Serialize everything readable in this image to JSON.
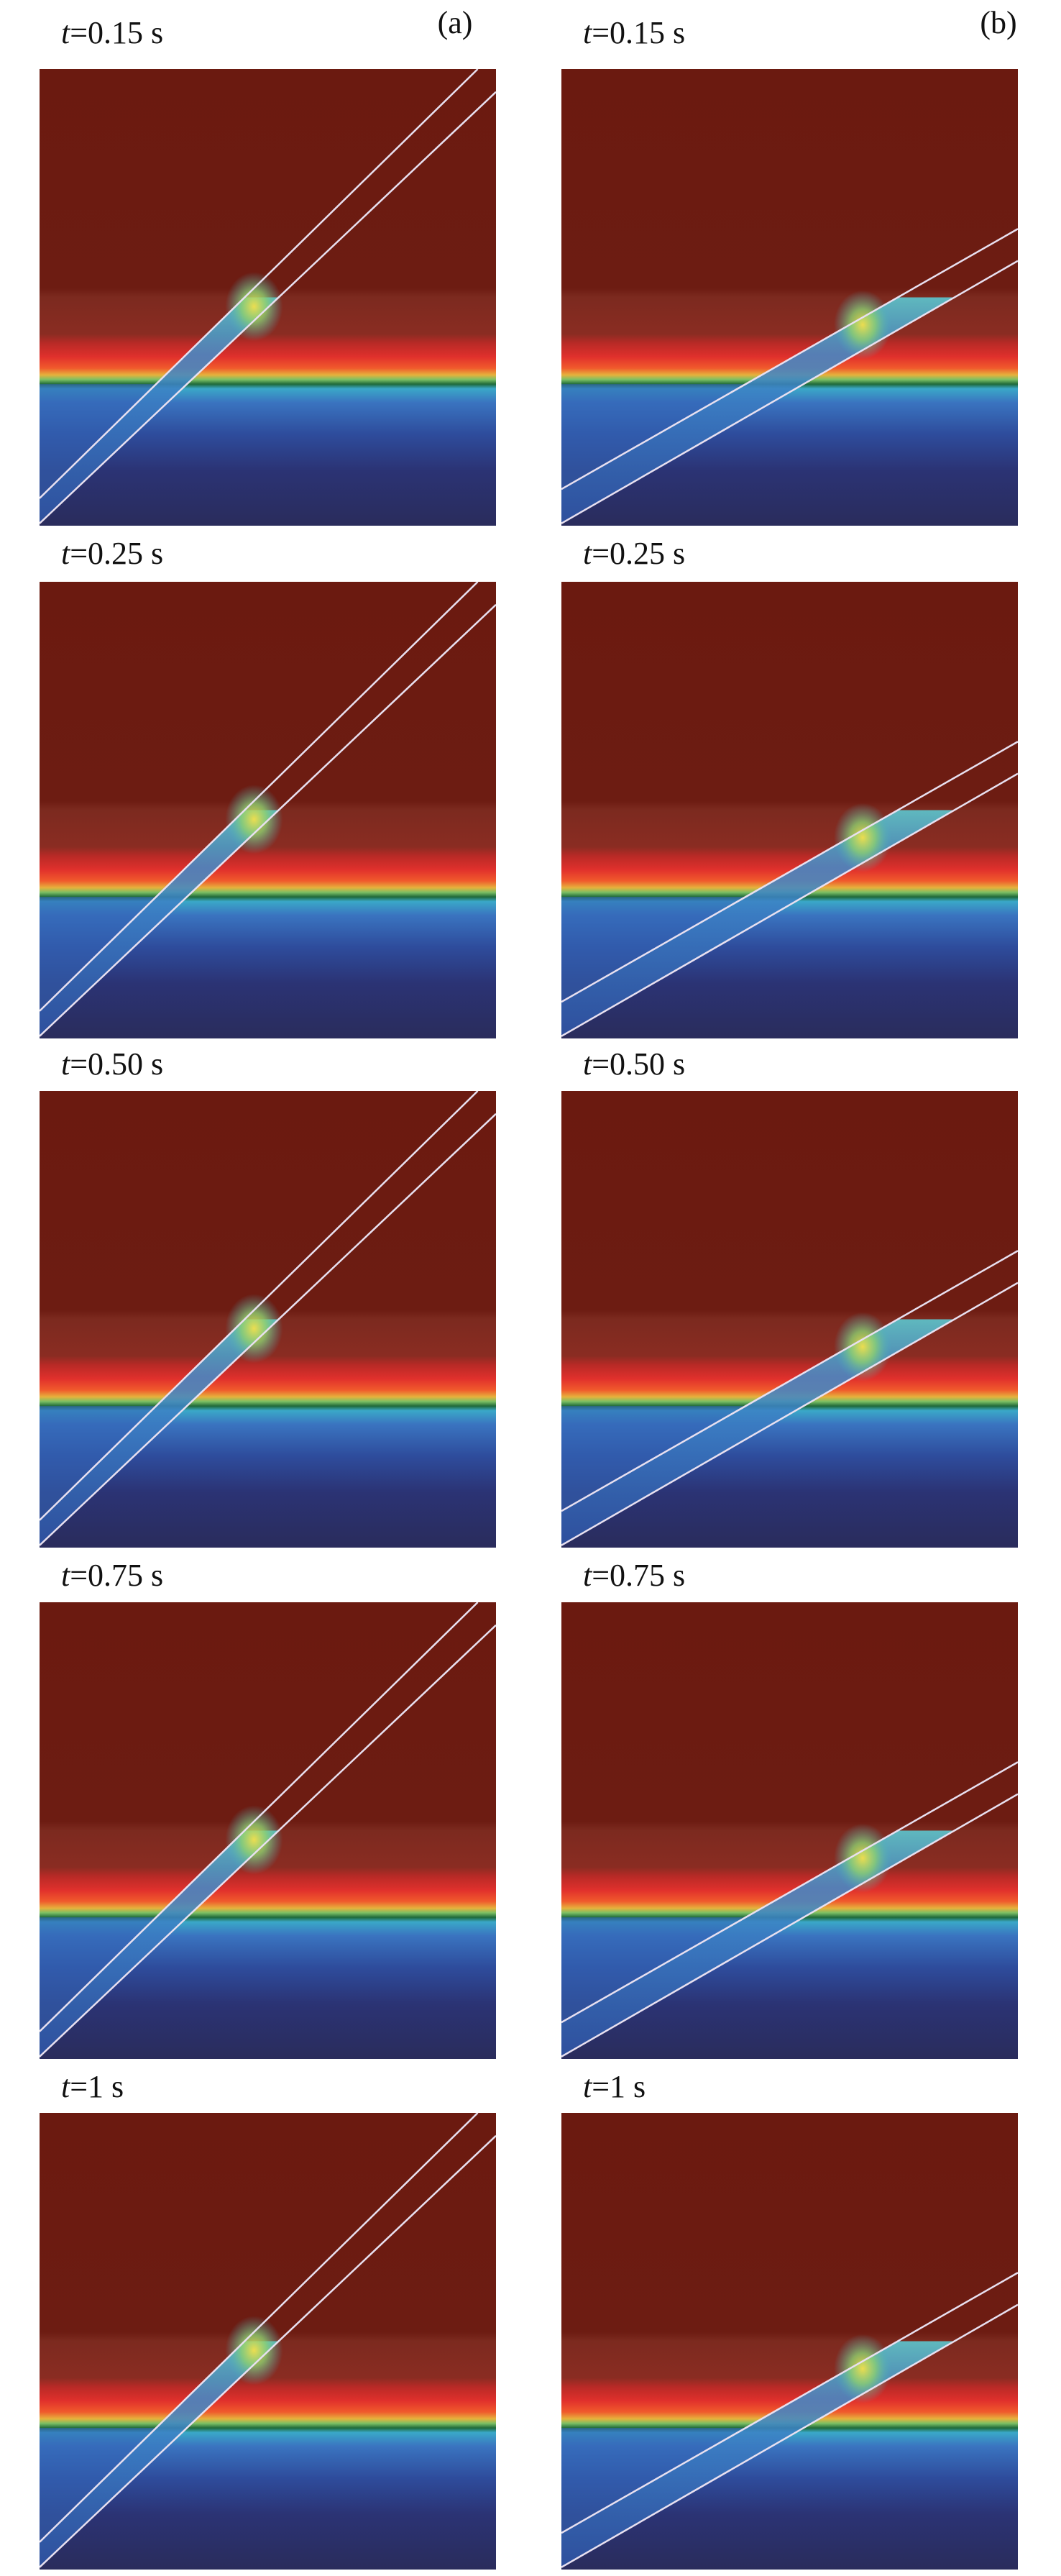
{
  "figure": {
    "columns": [
      {
        "label": "(a)",
        "panels": [
          {
            "symbol": "t",
            "time": "=0.15 s"
          },
          {
            "symbol": "t",
            "time": "=0.25 s"
          },
          {
            "symbol": "t",
            "time": "=0.50 s"
          },
          {
            "symbol": "t",
            "time": "=0.75 s"
          },
          {
            "symbol": "t",
            "time": "=1 s"
          }
        ]
      },
      {
        "label": "(b)",
        "panels": [
          {
            "symbol": "t",
            "time": "=0.15 s"
          },
          {
            "symbol": "t",
            "time": "=0.25 s"
          },
          {
            "symbol": "t",
            "time": "=0.50 s"
          },
          {
            "symbol": "t",
            "time": "=0.75 s"
          },
          {
            "symbol": "t",
            "time": "=1 s"
          }
        ]
      }
    ]
  }
}
